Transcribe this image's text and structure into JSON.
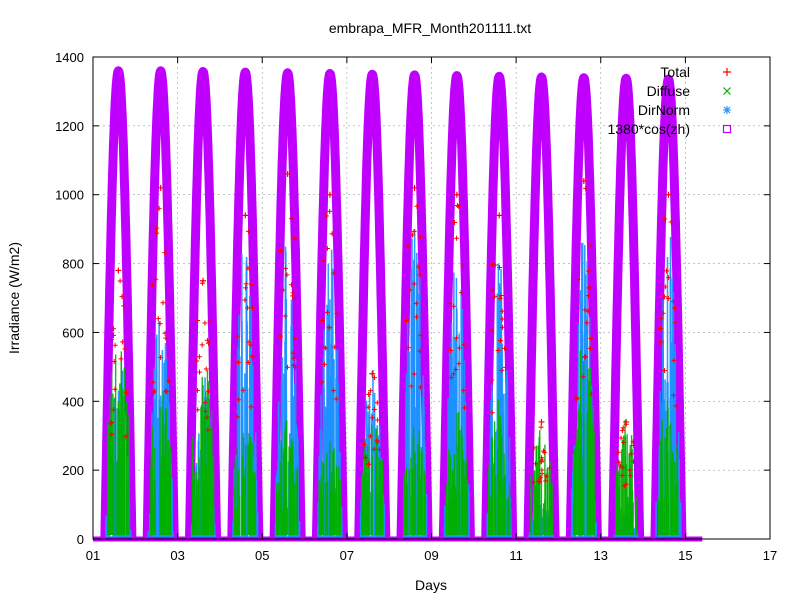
{
  "chart_data": {
    "type": "scatter",
    "title": "embrapa_MFR_Month201111.txt",
    "xlabel": "Days",
    "ylabel": "Irradiance (W/m2)",
    "xlim": [
      1,
      17
    ],
    "ylim": [
      0,
      1400
    ],
    "x_ticks": [
      1,
      3,
      5,
      7,
      9,
      11,
      13,
      15,
      17
    ],
    "x_tick_labels": [
      "01",
      "03",
      "05",
      "07",
      "09",
      "11",
      "13",
      "15",
      "17"
    ],
    "y_ticks": [
      0,
      200,
      400,
      600,
      800,
      1000,
      1200,
      1400
    ],
    "grid": true,
    "legend_position": "top-right",
    "data_end_day": 15.4,
    "colors": {
      "total": "#ff0000",
      "diffuse": "#00b000",
      "dirnorm": "#1e90ff",
      "cosine": "#c000ff"
    },
    "series": [
      {
        "name": "Total",
        "marker": "+",
        "color": "#ff0000",
        "daily_peak": [
          780,
          1020,
          750,
          940,
          1060,
          1000,
          480,
          1020,
          1000,
          940,
          340,
          1040,
          340,
          1000
        ]
      },
      {
        "name": "Diffuse",
        "marker": "x",
        "color": "#00b000",
        "daily_peak": [
          600,
          450,
          540,
          380,
          350,
          300,
          370,
          350,
          380,
          420,
          330,
          600,
          350,
          420
        ]
      },
      {
        "name": "DirNorm",
        "marker": "*",
        "color": "#1e90ff",
        "daily_peak": [
          560,
          700,
          480,
          880,
          860,
          840,
          500,
          900,
          850,
          800,
          100,
          860,
          80,
          880
        ]
      },
      {
        "name": "1380*cos(zh)",
        "marker": "square",
        "color": "#c000ff",
        "daily_peak": [
          1360,
          1360,
          1358,
          1356,
          1354,
          1352,
          1350,
          1348,
          1346,
          1344,
          1342,
          1340,
          1338,
          1336
        ]
      }
    ],
    "days": [
      1.6,
      2.6,
      3.6,
      4.6,
      5.6,
      6.6,
      7.6,
      8.6,
      9.6,
      10.6,
      11.6,
      12.6,
      13.6,
      14.6
    ]
  }
}
